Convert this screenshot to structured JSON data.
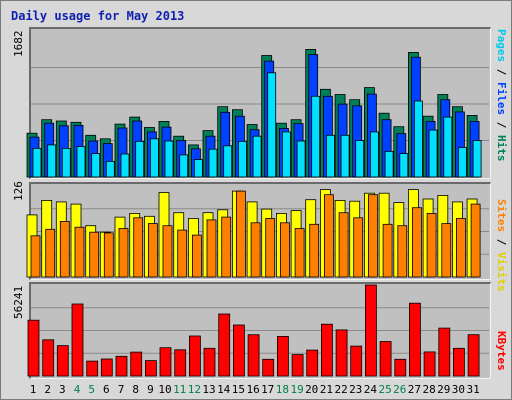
{
  "title": "Daily usage for May 2013",
  "max_labels": {
    "hits": "1682",
    "visits": "126",
    "kbytes": "56241"
  },
  "legend": {
    "pages": "Pages",
    "files": "Files",
    "hits": "Hits",
    "sites": "Sites",
    "visits": "Visits",
    "kbytes": "KBytes",
    "sep": " / "
  },
  "colors": {
    "hits": "#00805a",
    "files": "#0040ff",
    "pages": "#00e0ff",
    "visits": "#ffff00",
    "sites": "#ff8000",
    "kbytes": "#ff0000"
  },
  "chart_data": [
    {
      "type": "bar",
      "title": "Daily usage for May 2013",
      "categories": [
        "1",
        "2",
        "3",
        "4",
        "5",
        "6",
        "7",
        "8",
        "9",
        "10",
        "11",
        "12",
        "13",
        "14",
        "15",
        "16",
        "17",
        "18",
        "19",
        "20",
        "21",
        "22",
        "23",
        "24",
        "25",
        "26",
        "27",
        "28",
        "29",
        "30",
        "31"
      ],
      "ylim": [
        0,
        1682
      ],
      "series": [
        {
          "name": "Hits",
          "values": [
            505,
            660,
            645,
            630,
            480,
            440,
            610,
            690,
            570,
            640,
            470,
            370,
            535,
            810,
            775,
            605,
            1400,
            620,
            660,
            1470,
            1010,
            950,
            890,
            1030,
            735,
            580,
            1435,
            700,
            950,
            810,
            710
          ]
        },
        {
          "name": "Files",
          "values": [
            460,
            620,
            590,
            595,
            415,
            385,
            565,
            645,
            520,
            575,
            420,
            325,
            470,
            745,
            700,
            545,
            1335,
            560,
            615,
            1410,
            930,
            840,
            820,
            955,
            660,
            500,
            1380,
            640,
            890,
            750,
            640
          ]
        },
        {
          "name": "Pages",
          "values": [
            330,
            370,
            330,
            350,
            270,
            180,
            265,
            410,
            440,
            415,
            255,
            200,
            320,
            360,
            410,
            470,
            1200,
            520,
            415,
            930,
            480,
            480,
            420,
            520,
            295,
            270,
            875,
            540,
            690,
            340,
            420
          ]
        }
      ]
    },
    {
      "type": "bar",
      "categories": [
        "1",
        "2",
        "3",
        "4",
        "5",
        "6",
        "7",
        "8",
        "9",
        "10",
        "11",
        "12",
        "13",
        "14",
        "15",
        "16",
        "17",
        "18",
        "19",
        "20",
        "21",
        "22",
        "23",
        "24",
        "25",
        "26",
        "27",
        "28",
        "29",
        "30",
        "31"
      ],
      "ylim": [
        0,
        126
      ],
      "series": [
        {
          "name": "Visits",
          "values": [
            86,
            106,
            104,
            101,
            71,
            62,
            83,
            88,
            84,
            117,
            89,
            81,
            89,
            93,
            119,
            104,
            94,
            88,
            92,
            107,
            121,
            106,
            105,
            116,
            116,
            103,
            121,
            108,
            113,
            104,
            108
          ]
        },
        {
          "name": "Sites",
          "values": [
            57,
            66,
            77,
            69,
            62,
            61,
            67,
            82,
            74,
            71,
            65,
            58,
            79,
            83,
            119,
            75,
            81,
            75,
            67,
            73,
            114,
            89,
            82,
            114,
            73,
            71,
            96,
            88,
            74,
            81,
            101
          ]
        }
      ]
    },
    {
      "type": "bar",
      "categories": [
        "1",
        "2",
        "3",
        "4",
        "5",
        "6",
        "7",
        "8",
        "9",
        "10",
        "11",
        "12",
        "13",
        "14",
        "15",
        "16",
        "17",
        "18",
        "19",
        "20",
        "21",
        "22",
        "23",
        "24",
        "25",
        "26",
        "27",
        "28",
        "29",
        "30",
        "31"
      ],
      "ylim": [
        0,
        56241
      ],
      "series": [
        {
          "name": "KBytes",
          "values": [
            34500,
            22400,
            18800,
            44500,
            9200,
            10500,
            12200,
            14800,
            9500,
            17500,
            16200,
            24700,
            17100,
            38300,
            31500,
            25500,
            10300,
            24500,
            13200,
            16000,
            32000,
            28500,
            18500,
            56241,
            21300,
            10300,
            45000,
            14900,
            29600,
            17100,
            25500
          ]
        }
      ]
    }
  ],
  "weekend_days": [
    4,
    5,
    11,
    12,
    18,
    19,
    25,
    26
  ]
}
